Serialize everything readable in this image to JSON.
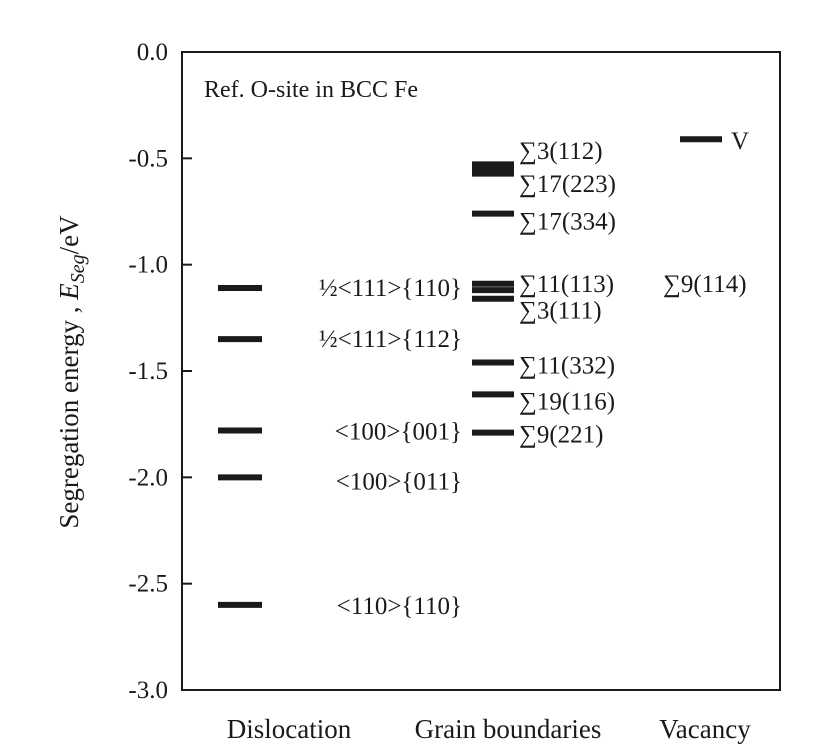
{
  "chart_data": {
    "type": "scatter",
    "ylabel": "Segregation energy , ",
    "ylabel_symbol": "E",
    "ylabel_sub": "Seg",
    "ylabel_unit": "/eV",
    "ylim": [
      -3.0,
      0.0
    ],
    "yticks": [
      "0.0",
      "-0.5",
      "-1.0",
      "-1.5",
      "-2.0",
      "-2.5",
      "-3.0"
    ],
    "yticks_values": [
      0.0,
      -0.5,
      -1.0,
      -1.5,
      -2.0,
      -2.5,
      -3.0
    ],
    "categories": [
      "Dislocation",
      "Grain boundaries",
      "Vacancy"
    ],
    "annotation": "Ref. O-site in BCC Fe",
    "grid": false,
    "series": [
      {
        "category": "Dislocation",
        "points": [
          {
            "label": "½<111>{110}",
            "value": -1.11
          },
          {
            "label": "½<111>{112}",
            "value": -1.35
          },
          {
            "label": "<100>{001}",
            "value": -1.78
          },
          {
            "label": "<100>{011}",
            "value": -2.0
          },
          {
            "label": "<110>{110}",
            "value": -2.6
          }
        ]
      },
      {
        "category": "Grain boundaries",
        "points": [
          {
            "label": "∑3(112)",
            "value": -0.54
          },
          {
            "label": "∑17(223)",
            "value": -0.56
          },
          {
            "label": "∑17(334)",
            "value": -0.76
          },
          {
            "label": "∑11(113)",
            "value": -1.09
          },
          {
            "label": "∑9(114)",
            "value": -1.12
          },
          {
            "label": "∑3(111)",
            "value": -1.16
          },
          {
            "label": "∑11(332)",
            "value": -1.46
          },
          {
            "label": "∑19(116)",
            "value": -1.61
          },
          {
            "label": "∑9(221)",
            "value": -1.79
          }
        ]
      },
      {
        "category": "Vacancy",
        "points": [
          {
            "label": "V",
            "value": -0.41
          }
        ]
      }
    ]
  }
}
